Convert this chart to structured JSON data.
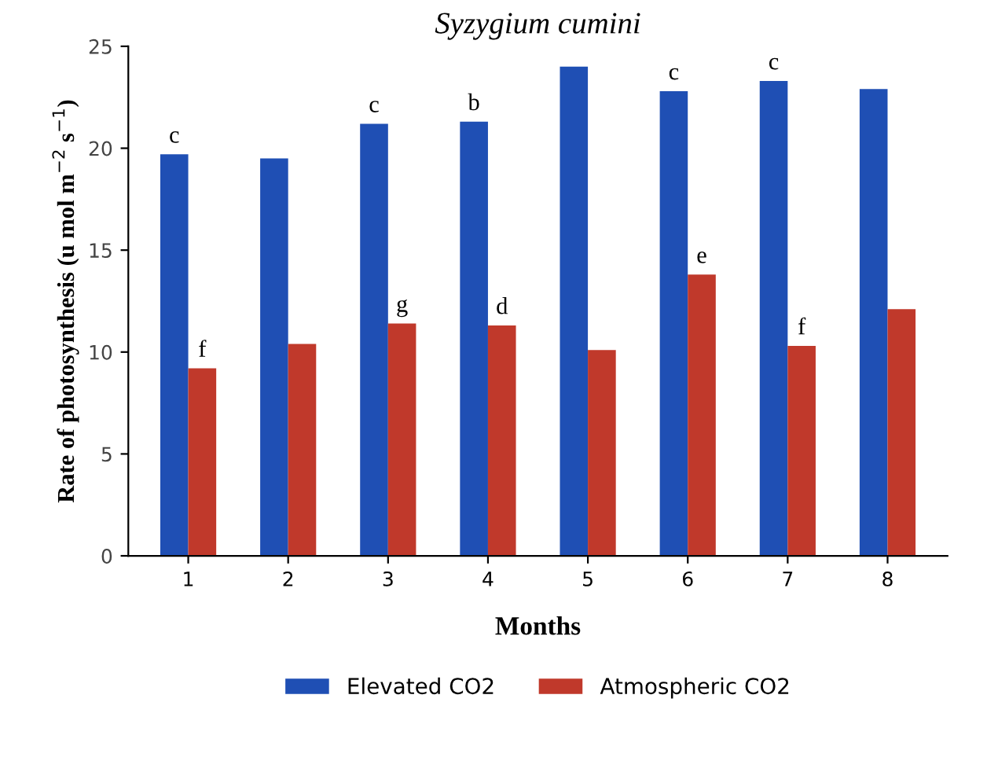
{
  "chart_data": {
    "type": "bar",
    "title": "Syzygium cumini",
    "xlabel": "Months",
    "ylabel": "Rate of photosynthesis (u mol m$^{−2}$ s$^{−1}$)",
    "categories": [
      "1",
      "2",
      "3",
      "4",
      "5",
      "6",
      "7",
      "8"
    ],
    "series": [
      {
        "name": "Elevated CO2",
        "color": "#1f4fb4",
        "values": [
          19.7,
          19.5,
          21.2,
          21.3,
          24.0,
          22.8,
          23.3,
          22.9
        ]
      },
      {
        "name": "Atmospheric CO2",
        "color": "#c0392b",
        "values": [
          9.2,
          10.4,
          11.4,
          11.3,
          10.1,
          13.8,
          10.3,
          12.1
        ]
      }
    ],
    "annotations": [
      {
        "text": "c",
        "x": "1",
        "y": 19.7
      },
      {
        "text": "c",
        "x": "3",
        "y": 21.2
      },
      {
        "text": "b",
        "x": "4",
        "y": 21.3
      },
      {
        "text": "c",
        "x": "6",
        "y": 22.8
      },
      {
        "text": "c",
        "x": "7",
        "y": 23.3
      },
      {
        "text": "f",
        "x": "1",
        "y": 9.2
      },
      {
        "text": "g",
        "x": "3",
        "y": 11.4
      },
      {
        "text": "d",
        "x": "4",
        "y": 11.3
      },
      {
        "text": "e",
        "x": "6",
        "y": 13.8
      },
      {
        "text": "f",
        "x": "7",
        "y": 10.3
      }
    ],
    "ylim": [
      0,
      25
    ],
    "yticks": [
      0,
      5,
      10,
      15,
      20,
      25
    ],
    "grid": false,
    "legend": "bottom"
  }
}
